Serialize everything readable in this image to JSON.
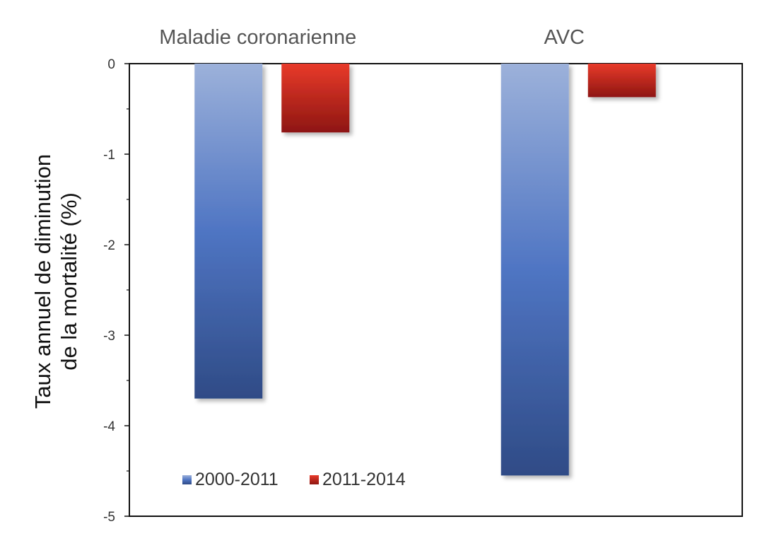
{
  "chart_data": {
    "type": "bar",
    "categories": [
      "Maladie coronarienne",
      "AVC"
    ],
    "series": [
      {
        "name": "2000-2011",
        "values": [
          -3.7,
          -4.55
        ],
        "color": "#4472c4"
      },
      {
        "name": "2011-2014",
        "values": [
          -0.76,
          -0.37
        ],
        "color": "#c0221b"
      }
    ],
    "ylabel": "Taux annuel de diminution\nde la mortalité (%)",
    "ylim": [
      -5,
      0
    ],
    "yticks": [
      0,
      -1,
      -2,
      -3,
      -4,
      -5
    ],
    "category_labels_position": "top",
    "legend_position": "bottom-left",
    "grid": false
  }
}
